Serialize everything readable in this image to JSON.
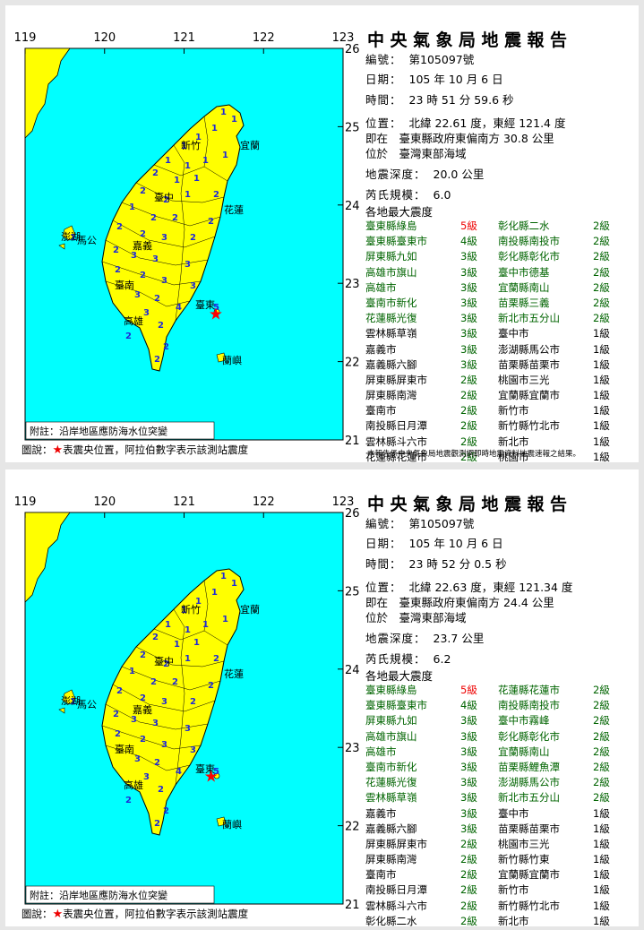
{
  "reports": [
    {
      "title": "中央氣象局地震報告",
      "number_label": "編號：",
      "number": "第105097號",
      "date_label": "日期：",
      "date": "105 年 10 月 6 日",
      "time_label": "時間：",
      "time": "23 時 51 分 59.6 秒",
      "location_label": "位置：",
      "location": "北緯 22.61 度，東經 121.4 度",
      "relative": "即在　臺東縣政府東偏南方 30.8 公里",
      "region": "位於　臺灣東部海域",
      "depth_label": "地震深度：",
      "depth": "20.0 公里",
      "magnitude_label": "芮氏規模：",
      "magnitude": "6.0",
      "intensity_label": "各地最大震度",
      "intensity": [
        [
          "臺東縣綠島",
          "5級",
          "彰化縣二水",
          "2級"
        ],
        [
          "臺東縣臺東市",
          "4級",
          "南投縣南投市",
          "2級"
        ],
        [
          "屏東縣九如",
          "3級",
          "彰化縣彰化市",
          "2級"
        ],
        [
          "高雄市旗山",
          "3級",
          "臺中市德基",
          "2級"
        ],
        [
          "高雄市",
          "3級",
          "宜蘭縣南山",
          "2級"
        ],
        [
          "臺南市新化",
          "3級",
          "苗栗縣三義",
          "2級"
        ],
        [
          "花蓮縣光復",
          "3級",
          "新北市五分山",
          "2級"
        ],
        [
          "雲林縣草嶺",
          "3級",
          "臺中市",
          "1級"
        ],
        [
          "嘉義市",
          "3級",
          "澎湖縣馬公市",
          "1級"
        ],
        [
          "嘉義縣六腳",
          "3級",
          "苗栗縣苗栗市",
          "1級"
        ],
        [
          "屏東縣屏東市",
          "2級",
          "桃園市三光",
          "1級"
        ],
        [
          "屏東縣南灣",
          "2級",
          "宜蘭縣宜蘭市",
          "1級"
        ],
        [
          "臺南市",
          "2級",
          "新竹市",
          "1級"
        ],
        [
          "南投縣日月潭",
          "2級",
          "新竹縣竹北市",
          "1級"
        ],
        [
          "雲林縣斗六市",
          "2級",
          "新北市",
          "1級"
        ],
        [
          "花蓮縣花蓮市",
          "2級",
          "桃園市",
          "1級"
        ]
      ],
      "note": "本報告係中央氣象局地震觀測網即時地震資料地震速報之結果。",
      "map": {
        "lon_labels": [
          "119",
          "120",
          "121",
          "122",
          "123"
        ],
        "lat_labels": [
          "26",
          "25",
          "24",
          "23",
          "22",
          "21"
        ],
        "places": [
          "新竹",
          "宜蘭",
          "臺中",
          "花蓮",
          "嘉義",
          "臺南",
          "高雄",
          "臺東",
          "澎湖",
          "馬公",
          "蘭嶼"
        ],
        "epicenter": {
          "lon": 121.4,
          "lat": 22.61
        },
        "sea_note": "附註：沿岸地區應防海水位突變",
        "legend_prefix": "圖說：",
        "legend_star": "★",
        "legend_text": "表震央位置，阿拉伯數字表示該測站震度"
      }
    },
    {
      "title": "中央氣象局地震報告",
      "number_label": "編號：",
      "number": "第105097號",
      "date_label": "日期：",
      "date": "105 年 10 月 6 日",
      "time_label": "時間：",
      "time": "23 時 52 分 0.5 秒",
      "location_label": "位置：",
      "location": "北緯 22.63 度，東經 121.34 度",
      "relative": "即在　臺東縣政府東偏南方 24.4 公里",
      "region": "位於　臺灣東部海域",
      "depth_label": "地震深度：",
      "depth": "23.7 公里",
      "magnitude_label": "芮氏規模：",
      "magnitude": "6.2",
      "intensity_label": "各地最大震度",
      "intensity": [
        [
          "臺東縣綠島",
          "5級",
          "花蓮縣花蓮市",
          "2級"
        ],
        [
          "臺東縣臺東市",
          "4級",
          "南投縣南投市",
          "2級"
        ],
        [
          "屏東縣九如",
          "3級",
          "臺中市霧峰",
          "2級"
        ],
        [
          "高雄市旗山",
          "3級",
          "彰化縣彰化市",
          "2級"
        ],
        [
          "高雄市",
          "3級",
          "宜蘭縣南山",
          "2級"
        ],
        [
          "臺南市新化",
          "3級",
          "苗栗縣鯉魚潭",
          "2級"
        ],
        [
          "花蓮縣光復",
          "3級",
          "澎湖縣馬公市",
          "2級"
        ],
        [
          "雲林縣草嶺",
          "3級",
          "新北市五分山",
          "2級"
        ],
        [
          "嘉義市",
          "3級",
          "臺中市",
          "1級"
        ],
        [
          "嘉義縣六腳",
          "3級",
          "苗栗縣苗栗市",
          "1級"
        ],
        [
          "屏東縣屏東市",
          "2級",
          "桃園市三光",
          "1級"
        ],
        [
          "屏東縣南灣",
          "2級",
          "新竹縣竹東",
          "1級"
        ],
        [
          "臺南市",
          "2級",
          "宜蘭縣宜蘭市",
          "1級"
        ],
        [
          "南投縣日月潭",
          "2級",
          "新竹市",
          "1級"
        ],
        [
          "雲林縣斗六市",
          "2級",
          "新竹縣竹北市",
          "1級"
        ],
        [
          "彰化縣二水",
          "2級",
          "新北市",
          "1級"
        ]
      ],
      "note": "",
      "map": {
        "lon_labels": [
          "119",
          "120",
          "121",
          "122",
          "123"
        ],
        "lat_labels": [
          "26",
          "25",
          "24",
          "23",
          "22",
          "21"
        ],
        "places": [
          "新竹",
          "宜蘭",
          "臺中",
          "花蓮",
          "嘉義",
          "臺南",
          "高雄",
          "臺東",
          "澎湖",
          "馬公",
          "蘭嶼"
        ],
        "epicenter": {
          "lon": 121.34,
          "lat": 22.63
        },
        "sea_note": "附註：沿岸地區應防海水位突變",
        "legend_prefix": "圖說：",
        "legend_star": "★",
        "legend_text": "表震央位置，阿拉伯數字表示該測站震度"
      }
    }
  ],
  "colors": {
    "sea": "#00ffff",
    "land": "#ffff00",
    "border": "#000000",
    "epicenter": "#ff0000",
    "lv5": "#ff0000",
    "lv4": "#006400",
    "lv1": "#000000",
    "station": "#1f2ad6"
  }
}
